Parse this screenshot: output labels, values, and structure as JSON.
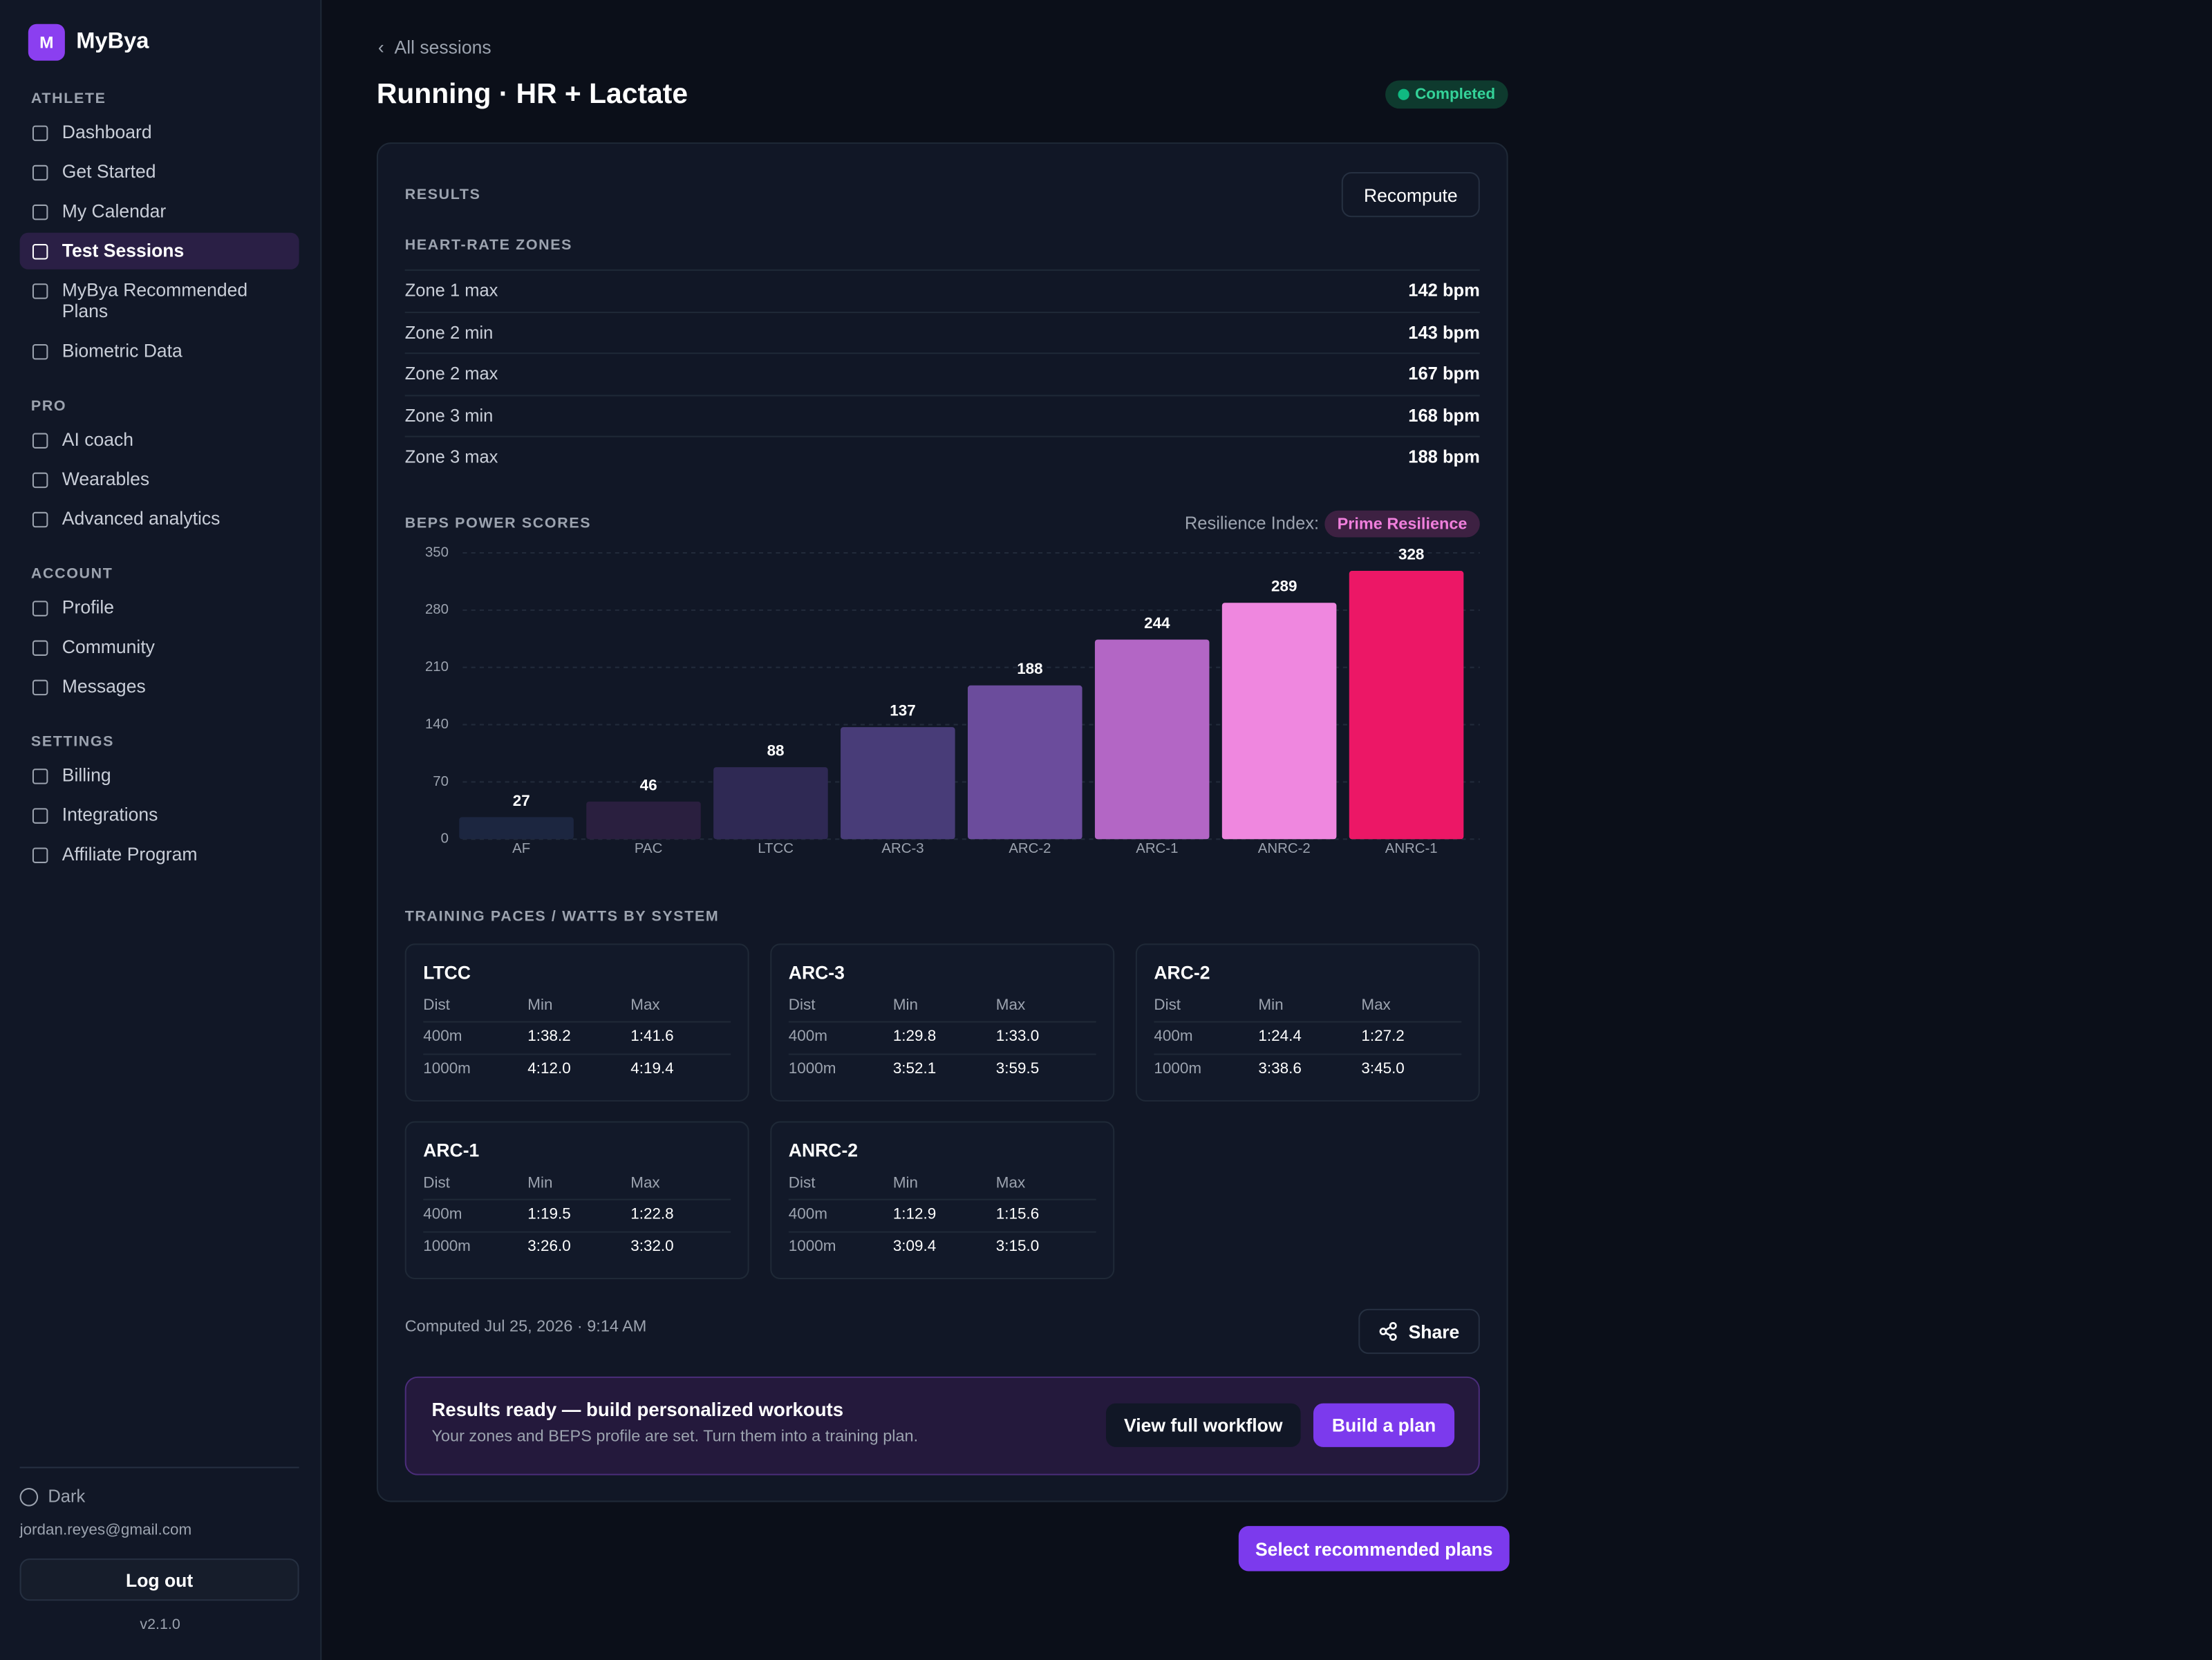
{
  "sidebar": {
    "logo": "M",
    "brand": "MyBya",
    "sections": [
      {
        "label": "ATHLETE",
        "items": [
          {
            "label": "Dashboard"
          },
          {
            "label": "Get Started"
          },
          {
            "label": "My Calendar"
          },
          {
            "label": "Test Sessions",
            "active": true
          },
          {
            "label": "MyBya Recommended Plans"
          },
          {
            "label": "Biometric Data"
          }
        ]
      },
      {
        "label": "PRO",
        "items": [
          {
            "label": "AI coach"
          },
          {
            "label": "Wearables"
          },
          {
            "label": "Advanced analytics"
          }
        ]
      },
      {
        "label": "ACCOUNT",
        "items": [
          {
            "label": "Profile"
          },
          {
            "label": "Community"
          },
          {
            "label": "Messages"
          }
        ]
      },
      {
        "label": "SETTINGS",
        "items": [
          {
            "label": "Billing"
          },
          {
            "label": "Integrations"
          },
          {
            "label": "Affiliate Program"
          }
        ]
      }
    ],
    "theme": "Dark",
    "email": "jordan.reyes@gmail.com",
    "logout": "Log out",
    "version": "v2.1.0"
  },
  "header": {
    "back": "All sessions",
    "title": "Running · HR + Lactate",
    "status": "Completed"
  },
  "results": {
    "label": "RESULTS",
    "recompute": "Recompute",
    "zones_title": "HEART-RATE ZONES",
    "zones": [
      [
        "Zone 1 max",
        "142 bpm"
      ],
      [
        "Zone 2 min",
        "143 bpm"
      ],
      [
        "Zone 2 max",
        "167 bpm"
      ],
      [
        "Zone 3 min",
        "168 bpm"
      ],
      [
        "Zone 3 max",
        "188 bpm"
      ]
    ],
    "beps_title": "BEPS POWER SCORES",
    "resilience_label": "Resilience Index:",
    "resilience": "Prime Resilience",
    "paces_title": "TRAINING PACES / WATTS BY SYSTEM",
    "pace_cards": [
      {
        "name": "LTCC",
        "headers": [
          "Dist",
          "Min",
          "Max"
        ],
        "rows": [
          [
            "400m",
            "1:38.2",
            "1:41.6"
          ],
          [
            "1000m",
            "4:12.0",
            "4:19.4"
          ]
        ]
      },
      {
        "name": "ARC-3",
        "headers": [
          "Dist",
          "Min",
          "Max"
        ],
        "rows": [
          [
            "400m",
            "1:29.8",
            "1:33.0"
          ],
          [
            "1000m",
            "3:52.1",
            "3:59.5"
          ]
        ]
      },
      {
        "name": "ARC-2",
        "headers": [
          "Dist",
          "Min",
          "Max"
        ],
        "rows": [
          [
            "400m",
            "1:24.4",
            "1:27.2"
          ],
          [
            "1000m",
            "3:38.6",
            "3:45.0"
          ]
        ]
      },
      {
        "name": "ARC-1",
        "headers": [
          "Dist",
          "Min",
          "Max"
        ],
        "rows": [
          [
            "400m",
            "1:19.5",
            "1:22.8"
          ],
          [
            "1000m",
            "3:26.0",
            "3:32.0"
          ]
        ]
      },
      {
        "name": "ANRC-2",
        "headers": [
          "Dist",
          "Min",
          "Max"
        ],
        "rows": [
          [
            "400m",
            "1:12.9",
            "1:15.6"
          ],
          [
            "1000m",
            "3:09.4",
            "3:15.0"
          ]
        ]
      }
    ],
    "computed": "Computed Jul 25, 2026 · 9:14 AM",
    "share": "Share",
    "cta": {
      "title": "Results ready — build personalized workouts",
      "subtitle": "Your zones and BEPS profile are set. Turn them into a training plan.",
      "secondary": "View full workflow",
      "primary": "Build a plan"
    }
  },
  "chart_data": {
    "type": "bar",
    "categories": [
      "AF",
      "PAC",
      "LTCC",
      "ARC-3",
      "ARC-2",
      "ARC-1",
      "ANRC-2",
      "ANRC-1"
    ],
    "values": [
      27,
      46,
      88,
      137,
      188,
      244,
      289,
      328
    ],
    "colors": [
      "#1c2640",
      "#2a1f3f",
      "#2f2954",
      "#483c78",
      "#6b4c9c",
      "#b366c5",
      "#ef87df",
      "#ec1766"
    ],
    "ylim": [
      0,
      350
    ],
    "yticks": [
      0,
      70,
      140,
      210,
      280,
      350
    ],
    "grid": true
  },
  "footer_button": "Select recommended plans"
}
